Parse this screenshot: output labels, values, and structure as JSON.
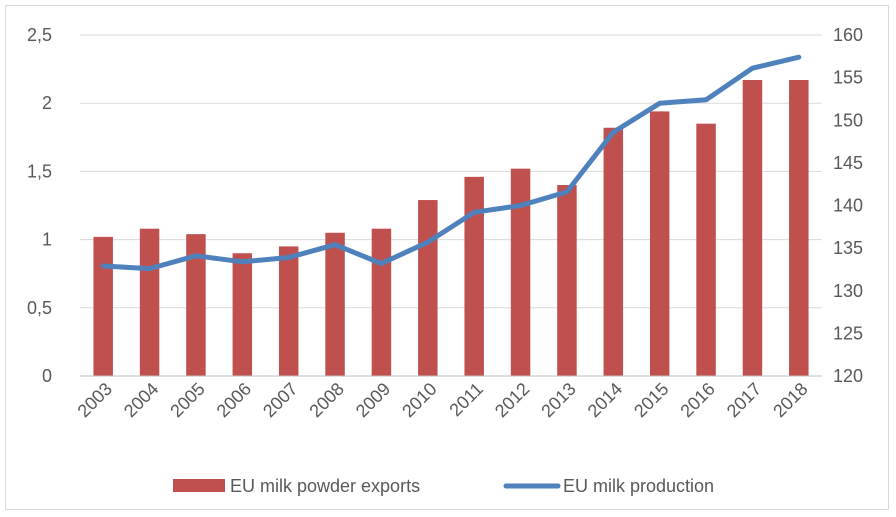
{
  "chart_data": {
    "type": "bar",
    "title": "",
    "xlabel": "",
    "ylabel": "",
    "categories": [
      "2003",
      "2004",
      "2005",
      "2006",
      "2007",
      "2008",
      "2009",
      "2010",
      "2011",
      "2012",
      "2013",
      "2014",
      "2015",
      "2016",
      "2017",
      "2018"
    ],
    "series": [
      {
        "name": "EU milk powder exports",
        "type": "bar",
        "axis": "left",
        "color": "#C0504D",
        "values": [
          1.02,
          1.08,
          1.04,
          0.9,
          0.95,
          1.05,
          1.08,
          1.29,
          1.46,
          1.52,
          1.4,
          1.82,
          1.94,
          1.85,
          2.17,
          2.17
        ]
      },
      {
        "name": "EU milk production",
        "type": "line",
        "axis": "right",
        "color": "#4F81BD",
        "values": [
          132.9,
          132.6,
          134.1,
          133.4,
          133.9,
          135.4,
          133.2,
          135.7,
          139.2,
          140.0,
          141.6,
          148.6,
          152.0,
          152.4,
          156.1,
          157.4
        ]
      }
    ],
    "y_left": {
      "min": 0,
      "max": 2.5,
      "ticks": [
        "0",
        "0,5",
        "1",
        "1,5",
        "2",
        "2,5"
      ]
    },
    "y_right": {
      "min": 120,
      "max": 160,
      "ticks": [
        "120",
        "125",
        "130",
        "135",
        "140",
        "145",
        "150",
        "155",
        "160"
      ]
    },
    "grid": true,
    "legend": "bottom"
  }
}
